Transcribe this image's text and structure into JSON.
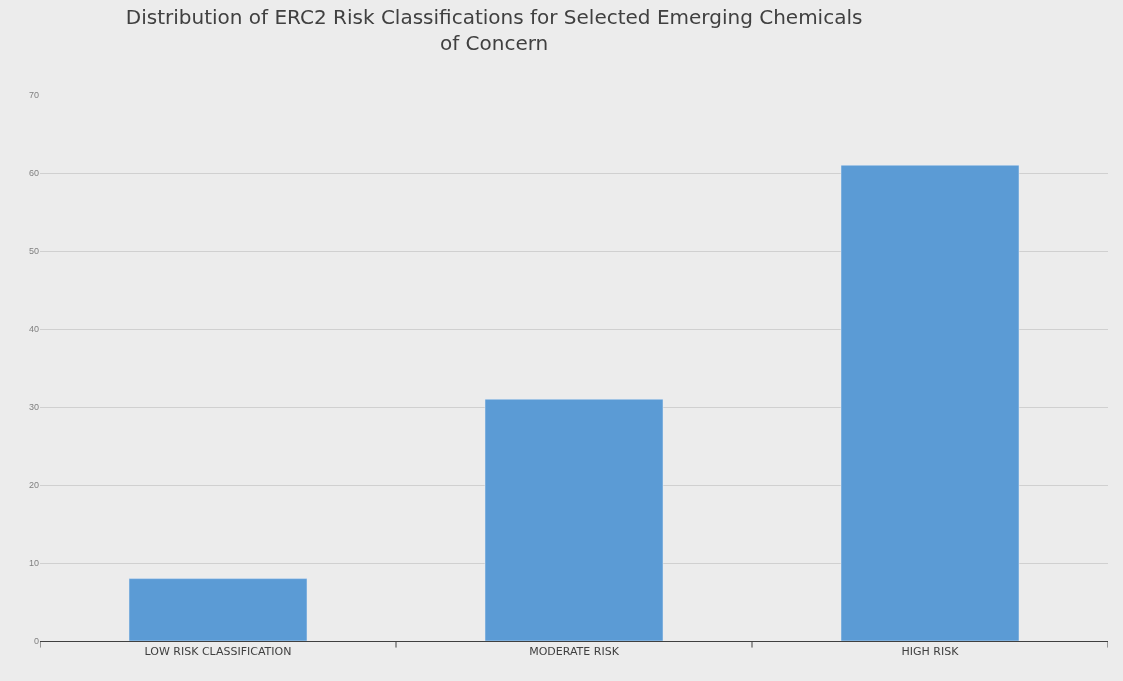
{
  "chart_data": {
    "type": "bar",
    "title": "Distribution of ERC2 Risk Classifications for Selected Emerging Chemicals of Concern",
    "categories": [
      "LOW RISK CLASSIFICATION",
      "MODERATE RISK",
      "HIGH RISK"
    ],
    "values": [
      8,
      31,
      61
    ],
    "color": "#5b9bd5",
    "ylim": [
      0,
      70
    ],
    "yticks": [
      0,
      10,
      20,
      30,
      40,
      50,
      60,
      70
    ],
    "grid": "y",
    "legend": false
  }
}
